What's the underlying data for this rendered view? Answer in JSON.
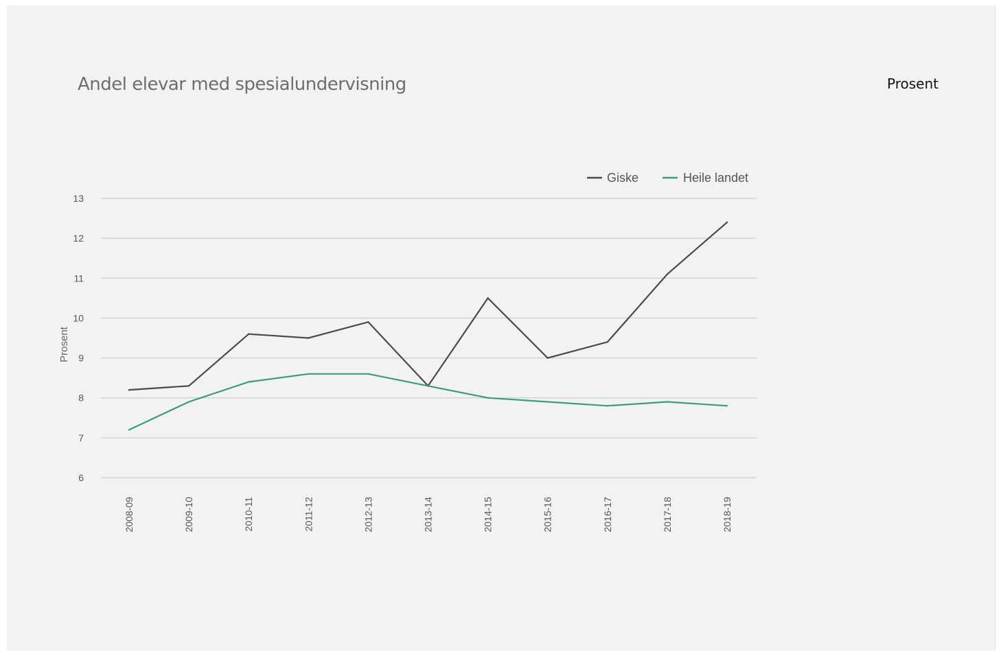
{
  "header": {
    "title": "Andel elevar med spesialundervisning",
    "unit_label": "Prosent"
  },
  "chart_data": {
    "type": "line",
    "title": "Andel elevar med spesialundervisning",
    "xlabel": "",
    "ylabel": "Prosent",
    "ylim": [
      6,
      13
    ],
    "yticks": [
      6,
      7,
      8,
      9,
      10,
      11,
      12,
      13
    ],
    "grid": true,
    "legend_position": "top-right",
    "categories": [
      "2008-09",
      "2009-10",
      "2010-11",
      "2011-12",
      "2012-13",
      "2013-14",
      "2014-15",
      "2015-16",
      "2016-17",
      "2017-18",
      "2018-19"
    ],
    "series": [
      {
        "name": "Giske",
        "color": "#4a4a4a",
        "values": [
          8.2,
          8.3,
          9.6,
          9.5,
          9.9,
          8.3,
          10.5,
          9.0,
          9.4,
          11.1,
          12.4
        ]
      },
      {
        "name": "Heile landet",
        "color": "#3a9b84",
        "values": [
          7.2,
          7.9,
          8.4,
          8.6,
          8.6,
          8.3,
          8.0,
          7.9,
          7.8,
          7.9,
          7.8
        ]
      }
    ]
  }
}
